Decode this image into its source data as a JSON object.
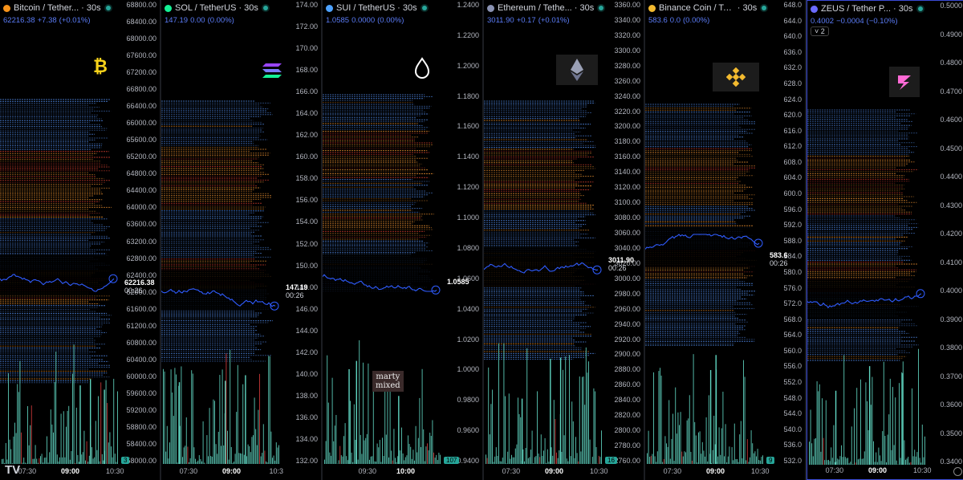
{
  "panes": [
    {
      "id": "btc",
      "title": "Bitcoin / Tether...",
      "interval": "· 30s",
      "icon_color": "#f7931a",
      "quote": {
        "price": "62216.38",
        "change": "+7.38",
        "pct": "(+0.01%)"
      },
      "ticks": [
        "68800.00",
        "68400.00",
        "68000.00",
        "67600.00",
        "67200.00",
        "66800.00",
        "66400.00",
        "66000.00",
        "65600.00",
        "65200.00",
        "64800.00",
        "64400.00",
        "64000.00",
        "63600.00",
        "63200.00",
        "62800.00",
        "62400.00",
        "62000.00",
        "61600.00",
        "61200.00",
        "60800.00",
        "60400.00",
        "60000.00",
        "59600.00",
        "59200.00",
        "58800.00",
        "58400.00",
        "58000.00"
      ],
      "price_label": "62216.38",
      "countdown": "00:26",
      "times": [
        "07:30",
        "09:00",
        "10:30"
      ],
      "logo": "bitcoin-logo",
      "corner_badge": "3",
      "watermark": "TV"
    },
    {
      "id": "sol",
      "title": "SOL / TetherUS",
      "interval": "· 30s",
      "icon_color": "#14f195",
      "quote": {
        "price": "147.19",
        "change": "0.00",
        "pct": "(0.00%)"
      },
      "ticks": [
        "174.00",
        "172.00",
        "170.00",
        "168.00",
        "166.00",
        "164.00",
        "162.00",
        "160.00",
        "158.00",
        "156.00",
        "154.00",
        "152.00",
        "150.00",
        "148.00",
        "146.00",
        "144.00",
        "142.00",
        "140.00",
        "138.00",
        "136.00",
        "134.00",
        "132.00"
      ],
      "price_label": "147.19",
      "countdown": "00:26",
      "times": [
        "07:30",
        "09:00",
        "10:3"
      ],
      "logo": "solana-logo",
      "corner_badge": "",
      "watermark": ""
    },
    {
      "id": "sui",
      "title": "SUI / TetherUS",
      "interval": "· 30s",
      "icon_color": "#4da2ff",
      "quote": {
        "price": "1.0585",
        "change": "0.0000",
        "pct": "(0.00%)"
      },
      "ticks": [
        "1.2400",
        "1.2200",
        "1.2000",
        "1.1800",
        "1.1600",
        "1.1400",
        "1.1200",
        "1.1000",
        "1.0800",
        "1.0600",
        "1.0400",
        "1.0200",
        "1.0000",
        "0.9800",
        "0.9600",
        "0.9400"
      ],
      "price_label": "1.0585",
      "countdown": "",
      "times": [
        "09:30",
        "10:00"
      ],
      "logo": "sui-logo",
      "corner_badge": "107",
      "watermark": "",
      "marty_text": [
        "marty",
        "mixed"
      ]
    },
    {
      "id": "eth",
      "title": "Ethereum / Tethe...",
      "interval": "· 30s",
      "icon_color": "#8a92b2",
      "quote": {
        "price": "3011.90",
        "change": "+0.17",
        "pct": "(+0.01%)"
      },
      "ticks": [
        "3360.00",
        "3340.00",
        "3320.00",
        "3300.00",
        "3280.00",
        "3260.00",
        "3240.00",
        "3220.00",
        "3200.00",
        "3180.00",
        "3160.00",
        "3140.00",
        "3120.00",
        "3100.00",
        "3080.00",
        "3060.00",
        "3040.00",
        "3020.00",
        "3000.00",
        "2980.00",
        "2960.00",
        "2940.00",
        "2920.00",
        "2900.00",
        "2880.00",
        "2860.00",
        "2840.00",
        "2820.00",
        "2800.00",
        "2780.00",
        "2760.00"
      ],
      "price_label": "3011.90",
      "countdown": "00:26",
      "times": [
        "07:30",
        "09:00",
        "10:30"
      ],
      "logo": "ethereum-logo",
      "corner_badge": "16",
      "watermark": ""
    },
    {
      "id": "bnb",
      "title": "Binance Coin / Tet...",
      "interval": "· 30s",
      "icon_color": "#f3ba2f",
      "quote": {
        "price": "583.6",
        "change": "0.0",
        "pct": "(0.00%)"
      },
      "ticks": [
        "648.0",
        "644.0",
        "640.0",
        "636.0",
        "632.0",
        "628.0",
        "624.0",
        "620.0",
        "616.0",
        "612.0",
        "608.0",
        "604.0",
        "600.0",
        "596.0",
        "592.0",
        "588.0",
        "584.0",
        "580.0",
        "576.0",
        "572.0",
        "568.0",
        "564.0",
        "560.0",
        "556.0",
        "552.0",
        "548.0",
        "544.0",
        "540.0",
        "536.0",
        "532.0"
      ],
      "price_label": "583.6",
      "countdown": "00:26",
      "times": [
        "07:30",
        "09:00",
        "10:30"
      ],
      "logo": "binance-logo",
      "corner_badge": "9",
      "watermark": ""
    },
    {
      "id": "zeus",
      "title": "ZEUS / Tether P...",
      "interval": "· 30s",
      "icon_color": "#6b6bff",
      "quote": {
        "price": "0.4002",
        "change": "−0.0004",
        "pct": "(−0.10%)"
      },
      "ticks": [
        "0.5000",
        "0.4900",
        "0.4800",
        "0.4700",
        "0.4600",
        "0.4500",
        "0.4400",
        "0.4300",
        "0.4200",
        "0.4100",
        "0.4000",
        "0.3900",
        "0.3800",
        "0.3700",
        "0.3600",
        "0.3500",
        "0.3400"
      ],
      "price_label": "",
      "countdown": "",
      "times": [
        "07:30",
        "09:00",
        "10:30"
      ],
      "logo": "zeus-logo",
      "corner_badge": "",
      "watermark": "",
      "badge": "˅ 2"
    }
  ],
  "colors": {
    "line": "#2f5cff",
    "blue_band": "#4a7fd6",
    "orange_band": "#e08a2e",
    "red_band": "#c0392b",
    "volume": "#5fd4c0",
    "volume_red": "#d13a3a",
    "active_border": "#3b4bd6"
  }
}
